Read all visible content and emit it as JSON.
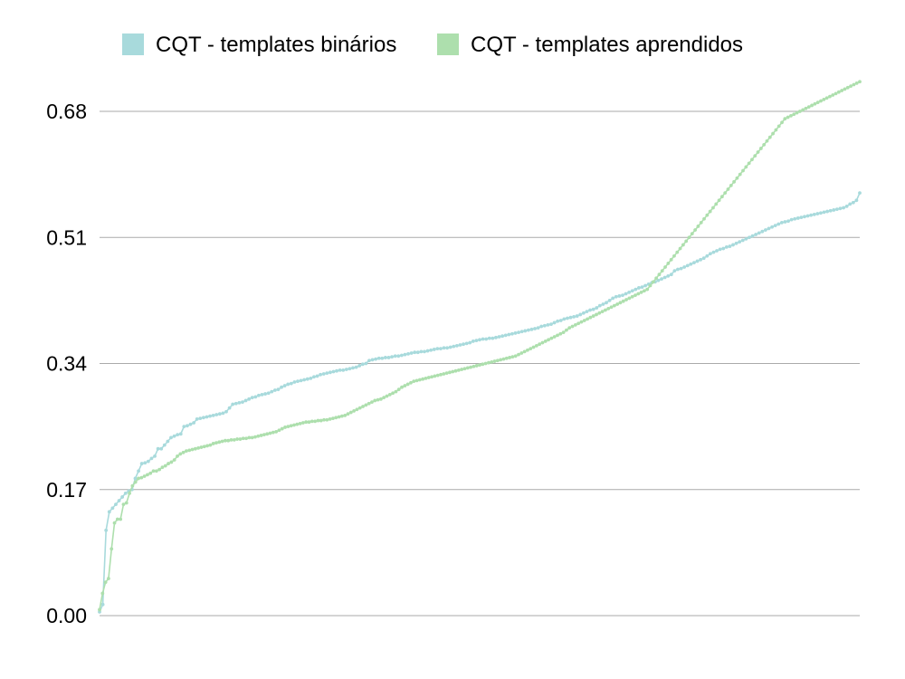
{
  "chart_data": {
    "type": "line",
    "title": "",
    "xlabel": "",
    "ylabel": "",
    "ylim": [
      0,
      0.68
    ],
    "yticks": [
      "0.00",
      "0.17",
      "0.34",
      "0.51",
      "0.68"
    ],
    "grid": "horizontal",
    "legend_position": "top",
    "x_range": [
      0,
      229
    ],
    "series": [
      {
        "name": "CQT - templates binários",
        "color": "#a8dadc",
        "values": [
          0.005,
          0.015,
          0.115,
          0.14,
          0.145,
          0.15,
          0.155,
          0.16,
          0.165,
          0.168,
          0.17,
          0.185,
          0.195,
          0.205,
          0.206,
          0.208,
          0.212,
          0.215,
          0.225,
          0.225,
          0.23,
          0.235,
          0.24,
          0.242,
          0.244,
          0.245,
          0.255,
          0.256,
          0.258,
          0.26,
          0.265,
          0.266,
          0.267,
          0.268,
          0.269,
          0.27,
          0.271,
          0.272,
          0.273,
          0.275,
          0.28,
          0.285,
          0.286,
          0.287,
          0.288,
          0.29,
          0.292,
          0.294,
          0.295,
          0.297,
          0.298,
          0.299,
          0.3,
          0.302,
          0.304,
          0.305,
          0.308,
          0.31,
          0.312,
          0.313,
          0.315,
          0.316,
          0.317,
          0.318,
          0.319,
          0.32,
          0.322,
          0.323,
          0.325,
          0.326,
          0.327,
          0.328,
          0.329,
          0.33,
          0.331,
          0.331,
          0.332,
          0.333,
          0.334,
          0.335,
          0.337,
          0.339,
          0.34,
          0.344,
          0.345,
          0.346,
          0.347,
          0.347,
          0.348,
          0.348,
          0.349,
          0.35,
          0.35,
          0.351,
          0.352,
          0.353,
          0.354,
          0.355,
          0.355,
          0.356,
          0.356,
          0.357,
          0.358,
          0.359,
          0.36,
          0.36,
          0.361,
          0.361,
          0.362,
          0.363,
          0.364,
          0.365,
          0.366,
          0.367,
          0.368,
          0.37,
          0.371,
          0.372,
          0.373,
          0.373,
          0.374,
          0.374,
          0.375,
          0.376,
          0.377,
          0.378,
          0.379,
          0.38,
          0.381,
          0.382,
          0.383,
          0.384,
          0.385,
          0.386,
          0.387,
          0.388,
          0.39,
          0.391,
          0.392,
          0.393,
          0.395,
          0.397,
          0.398,
          0.4,
          0.401,
          0.402,
          0.403,
          0.404,
          0.406,
          0.408,
          0.41,
          0.412,
          0.413,
          0.415,
          0.418,
          0.42,
          0.422,
          0.425,
          0.428,
          0.43,
          0.431,
          0.432,
          0.434,
          0.436,
          0.438,
          0.44,
          0.442,
          0.443,
          0.445,
          0.447,
          0.449,
          0.45,
          0.452,
          0.454,
          0.456,
          0.458,
          0.46,
          0.465,
          0.467,
          0.468,
          0.47,
          0.472,
          0.474,
          0.476,
          0.478,
          0.48,
          0.482,
          0.485,
          0.488,
          0.49,
          0.492,
          0.494,
          0.495,
          0.497,
          0.498,
          0.5,
          0.502,
          0.504,
          0.506,
          0.508,
          0.51,
          0.512,
          0.514,
          0.516,
          0.518,
          0.52,
          0.522,
          0.524,
          0.526,
          0.528,
          0.53,
          0.531,
          0.532,
          0.534,
          0.535,
          0.536,
          0.537,
          0.538,
          0.539,
          0.54,
          0.541,
          0.542,
          0.543,
          0.544,
          0.545,
          0.546,
          0.547,
          0.548,
          0.549,
          0.55,
          0.552,
          0.555,
          0.557,
          0.56,
          0.57
        ]
      },
      {
        "name": "CQT - templates aprendidos",
        "color": "#addfad",
        "values": [
          0.008,
          0.03,
          0.045,
          0.05,
          0.09,
          0.125,
          0.13,
          0.13,
          0.15,
          0.152,
          0.165,
          0.175,
          0.18,
          0.185,
          0.186,
          0.188,
          0.19,
          0.192,
          0.195,
          0.195,
          0.197,
          0.2,
          0.202,
          0.205,
          0.207,
          0.21,
          0.215,
          0.218,
          0.22,
          0.222,
          0.223,
          0.224,
          0.225,
          0.226,
          0.227,
          0.228,
          0.229,
          0.23,
          0.232,
          0.233,
          0.234,
          0.235,
          0.236,
          0.236,
          0.237,
          0.237,
          0.238,
          0.238,
          0.239,
          0.239,
          0.24,
          0.24,
          0.241,
          0.242,
          0.243,
          0.244,
          0.245,
          0.246,
          0.247,
          0.248,
          0.25,
          0.252,
          0.254,
          0.255,
          0.256,
          0.257,
          0.258,
          0.259,
          0.26,
          0.261,
          0.261,
          0.262,
          0.262,
          0.263,
          0.263,
          0.264,
          0.264,
          0.265,
          0.266,
          0.267,
          0.268,
          0.269,
          0.27,
          0.272,
          0.274,
          0.276,
          0.278,
          0.28,
          0.282,
          0.284,
          0.286,
          0.288,
          0.29,
          0.291,
          0.292,
          0.294,
          0.296,
          0.298,
          0.3,
          0.302,
          0.305,
          0.308,
          0.31,
          0.312,
          0.314,
          0.316,
          0.317,
          0.318,
          0.319,
          0.32,
          0.321,
          0.322,
          0.323,
          0.324,
          0.325,
          0.326,
          0.327,
          0.328,
          0.329,
          0.33,
          0.331,
          0.332,
          0.333,
          0.334,
          0.335,
          0.336,
          0.337,
          0.338,
          0.339,
          0.34,
          0.341,
          0.342,
          0.343,
          0.344,
          0.345,
          0.346,
          0.347,
          0.348,
          0.349,
          0.35,
          0.352,
          0.354,
          0.356,
          0.358,
          0.36,
          0.362,
          0.364,
          0.366,
          0.368,
          0.37,
          0.372,
          0.374,
          0.376,
          0.378,
          0.38,
          0.382,
          0.385,
          0.388,
          0.39,
          0.392,
          0.394,
          0.396,
          0.398,
          0.4,
          0.402,
          0.404,
          0.406,
          0.408,
          0.41,
          0.412,
          0.414,
          0.416,
          0.418,
          0.42,
          0.422,
          0.424,
          0.426,
          0.428,
          0.43,
          0.432,
          0.434,
          0.436,
          0.438,
          0.44,
          0.445,
          0.45,
          0.455,
          0.46,
          0.465,
          0.47,
          0.475,
          0.48,
          0.485,
          0.49,
          0.495,
          0.5,
          0.505,
          0.51,
          0.515,
          0.52,
          0.525,
          0.53,
          0.535,
          0.54,
          0.545,
          0.55,
          0.555,
          0.56,
          0.565,
          0.57,
          0.575,
          0.58,
          0.585,
          0.59,
          0.595,
          0.6,
          0.605,
          0.61,
          0.615,
          0.62,
          0.625,
          0.63,
          0.635,
          0.64,
          0.645,
          0.65,
          0.655,
          0.66,
          0.665,
          0.67,
          0.672,
          0.674,
          0.676,
          0.678,
          0.68,
          0.682,
          0.684,
          0.686,
          0.688,
          0.69,
          0.692,
          0.694,
          0.696,
          0.698,
          0.7,
          0.702,
          0.704,
          0.706,
          0.708,
          0.71,
          0.712,
          0.714,
          0.716,
          0.718,
          0.72
        ]
      }
    ]
  }
}
